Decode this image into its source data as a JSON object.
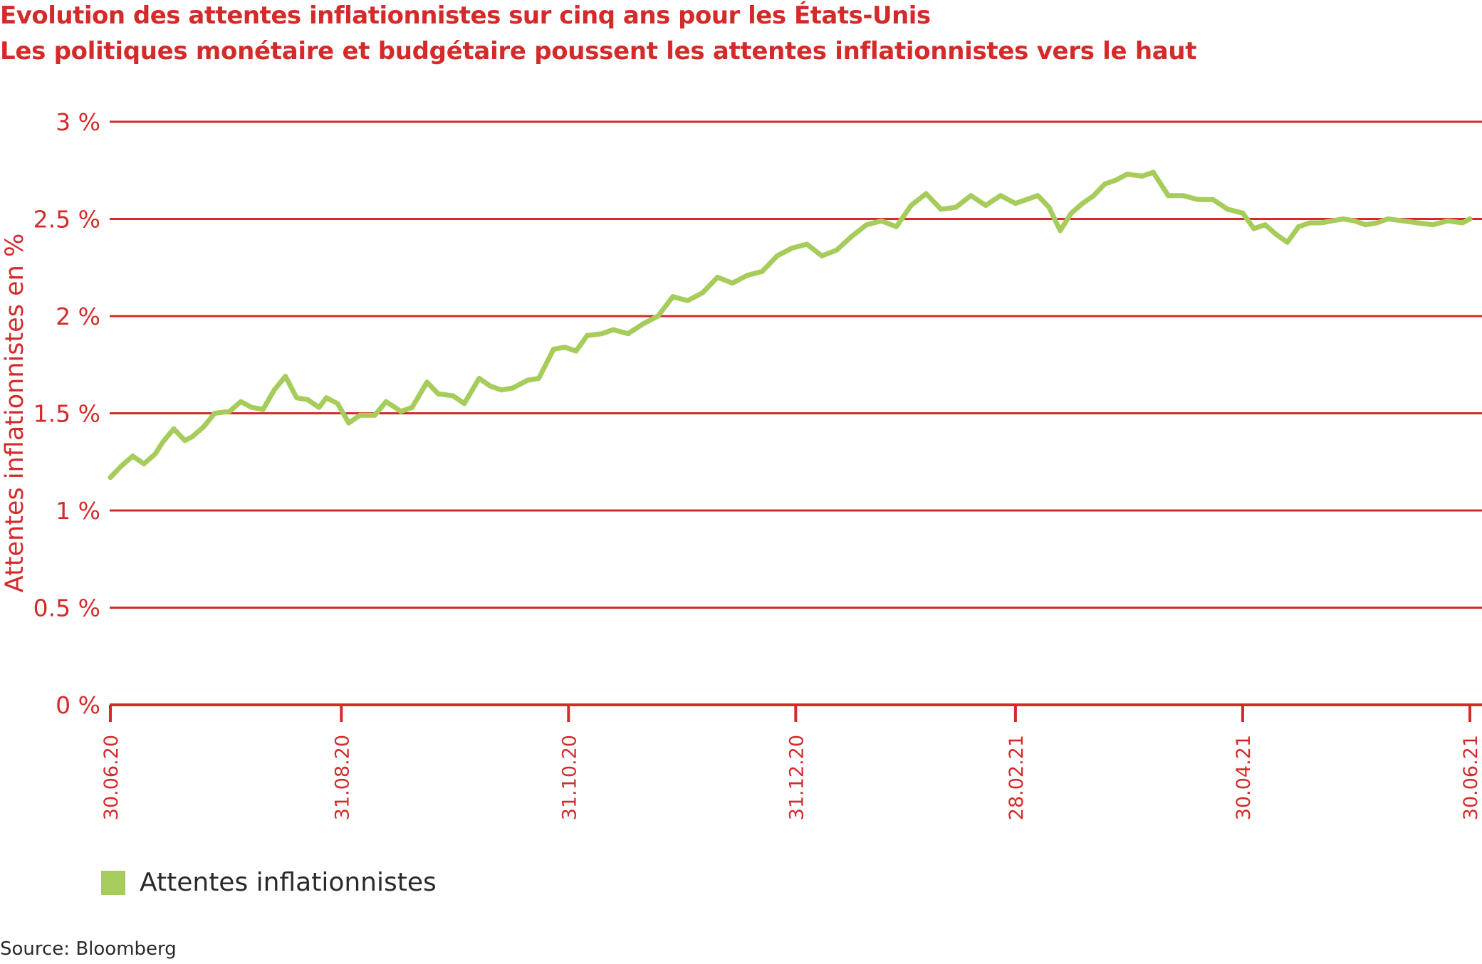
{
  "header": {
    "title": "Evolution des attentes inflationnistes sur cinq ans pour les États-Unis",
    "subtitle": "Les politiques monétaire et budgétaire poussent les attentes inflationnistes vers le haut"
  },
  "colors": {
    "accent": "#d42a2a",
    "series": "#a6cc5b",
    "text": "#2a2a2a"
  },
  "legend": {
    "label": "Attentes inflationnistes"
  },
  "source": "Source: Bloomberg",
  "chart_data": {
    "type": "line",
    "title": "Evolution des attentes inflationnistes sur cinq ans pour les États-Unis",
    "subtitle": "Les politiques monétaire et budgétaire poussent les attentes inflationnistes vers le haut",
    "xlabel": "",
    "ylabel": "Attentes inflationnistes en %",
    "ylim": [
      0,
      3
    ],
    "y_ticks": [
      0,
      0.5,
      1,
      1.5,
      2,
      2.5,
      3
    ],
    "y_tick_labels": [
      "0 %",
      "0.5 %",
      "1 %",
      "1.5 %",
      "2 %",
      "2.5 %",
      "3 %"
    ],
    "x_ticks": [
      "2020-06-30",
      "2020-08-31",
      "2020-10-31",
      "2020-12-31",
      "2021-02-28",
      "2021-04-30",
      "2021-06-30"
    ],
    "x_tick_labels": [
      "30.06.20",
      "31.08.20",
      "31.10.20",
      "31.12.20",
      "28.02.21",
      "30.04.21",
      "30.06.21"
    ],
    "xlim": [
      "2020-06-30",
      "2021-06-30"
    ],
    "grid": true,
    "legend_position": "bottom-left",
    "series": [
      {
        "name": "Attentes inflationnistes",
        "x": [
          "2020-06-30",
          "2020-07-03",
          "2020-07-06",
          "2020-07-09",
          "2020-07-12",
          "2020-07-14",
          "2020-07-17",
          "2020-07-20",
          "2020-07-22",
          "2020-07-25",
          "2020-07-28",
          "2020-08-01",
          "2020-08-04",
          "2020-08-07",
          "2020-08-10",
          "2020-08-13",
          "2020-08-16",
          "2020-08-19",
          "2020-08-22",
          "2020-08-25",
          "2020-08-27",
          "2020-08-30",
          "2020-09-02",
          "2020-09-05",
          "2020-09-09",
          "2020-09-12",
          "2020-09-16",
          "2020-09-19",
          "2020-09-23",
          "2020-09-26",
          "2020-09-30",
          "2020-10-03",
          "2020-10-07",
          "2020-10-10",
          "2020-10-13",
          "2020-10-16",
          "2020-10-20",
          "2020-10-23",
          "2020-10-27",
          "2020-10-30",
          "2020-11-02",
          "2020-11-05",
          "2020-11-09",
          "2020-11-12",
          "2020-11-16",
          "2020-11-20",
          "2020-11-24",
          "2020-11-28",
          "2020-12-02",
          "2020-12-06",
          "2020-12-10",
          "2020-12-14",
          "2020-12-18",
          "2020-12-22",
          "2020-12-26",
          "2020-12-30",
          "2021-01-03",
          "2021-01-07",
          "2021-01-11",
          "2021-01-15",
          "2021-01-19",
          "2021-01-23",
          "2021-01-27",
          "2021-01-31",
          "2021-02-04",
          "2021-02-08",
          "2021-02-12",
          "2021-02-16",
          "2021-02-20",
          "2021-02-24",
          "2021-02-28",
          "2021-03-03",
          "2021-03-06",
          "2021-03-09",
          "2021-03-12",
          "2021-03-15",
          "2021-03-18",
          "2021-03-21",
          "2021-03-24",
          "2021-03-27",
          "2021-03-30",
          "2021-04-03",
          "2021-04-06",
          "2021-04-10",
          "2021-04-14",
          "2021-04-18",
          "2021-04-22",
          "2021-04-26",
          "2021-04-30",
          "2021-05-03",
          "2021-05-06",
          "2021-05-09",
          "2021-05-12",
          "2021-05-15",
          "2021-05-18",
          "2021-05-21",
          "2021-05-24",
          "2021-05-27",
          "2021-05-30",
          "2021-06-02",
          "2021-06-05",
          "2021-06-08",
          "2021-06-12",
          "2021-06-16",
          "2021-06-20",
          "2021-06-24",
          "2021-06-28",
          "2021-06-30"
        ],
        "values": [
          1.17,
          1.23,
          1.28,
          1.24,
          1.29,
          1.35,
          1.42,
          1.36,
          1.38,
          1.43,
          1.5,
          1.51,
          1.56,
          1.53,
          1.52,
          1.62,
          1.69,
          1.58,
          1.57,
          1.53,
          1.58,
          1.55,
          1.45,
          1.49,
          1.49,
          1.56,
          1.51,
          1.53,
          1.66,
          1.6,
          1.59,
          1.55,
          1.68,
          1.64,
          1.62,
          1.63,
          1.67,
          1.68,
          1.83,
          1.84,
          1.82,
          1.9,
          1.91,
          1.93,
          1.91,
          1.96,
          2.0,
          2.1,
          2.08,
          2.12,
          2.2,
          2.17,
          2.21,
          2.23,
          2.31,
          2.35,
          2.37,
          2.31,
          2.34,
          2.41,
          2.47,
          2.49,
          2.46,
          2.57,
          2.63,
          2.55,
          2.56,
          2.62,
          2.57,
          2.62,
          2.58,
          2.6,
          2.62,
          2.56,
          2.44,
          2.53,
          2.58,
          2.62,
          2.68,
          2.7,
          2.73,
          2.72,
          2.74,
          2.62,
          2.62,
          2.6,
          2.6,
          2.55,
          2.53,
          2.45,
          2.47,
          2.42,
          2.38,
          2.46,
          2.48,
          2.48,
          2.49,
          2.5,
          2.49,
          2.47,
          2.48,
          2.5,
          2.49,
          2.48,
          2.47,
          2.49,
          2.48,
          2.5
        ]
      }
    ]
  }
}
